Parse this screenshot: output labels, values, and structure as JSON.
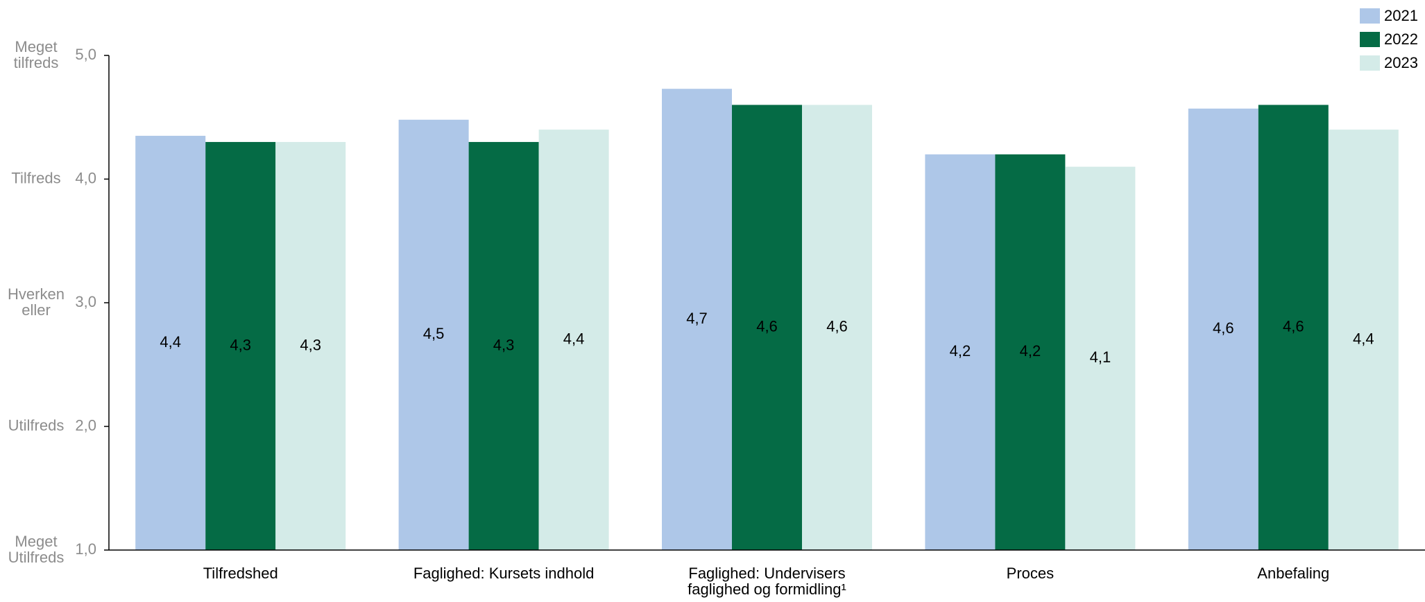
{
  "chart_data": {
    "type": "bar",
    "categories": [
      "Tilfredshed",
      "Faglighed: Kursets indhold",
      "Faglighed: Undervisers\nfaglighed og formidling¹",
      "Proces",
      "Anbefaling"
    ],
    "series": [
      {
        "name": "2021",
        "color": "#aec7e8",
        "label_color": "#000000",
        "values": [
          4.35,
          4.48,
          4.73,
          4.2,
          4.57
        ],
        "value_labels": [
          "4,4",
          "4,5",
          "4,7",
          "4,2",
          "4,6"
        ]
      },
      {
        "name": "2022",
        "color": "#056b45",
        "label_color": "#ffffff",
        "values": [
          4.3,
          4.3,
          4.6,
          4.2,
          4.6
        ],
        "value_labels": [
          "4,3",
          "4,3",
          "4,6",
          "4,2",
          "4,6"
        ]
      },
      {
        "name": "2023",
        "color": "#d4ebe8",
        "label_color": "#000000",
        "values": [
          4.3,
          4.4,
          4.6,
          4.1,
          4.4
        ],
        "value_labels": [
          "4,3",
          "4,4",
          "4,6",
          "4,1",
          "4,4"
        ]
      }
    ],
    "ylim": [
      1,
      5
    ],
    "yticks": [
      {
        "value": 1,
        "label": "1,0"
      },
      {
        "value": 2,
        "label": "2,0"
      },
      {
        "value": 3,
        "label": "3,0"
      },
      {
        "value": 4,
        "label": "4,0"
      },
      {
        "value": 5,
        "label": "5,0"
      }
    ],
    "ytick_descriptions": [
      "Meget\nUtilfreds",
      "Utilfreds",
      "Hverken\neller",
      "Tilfreds",
      "Meget\ntilfreds"
    ],
    "legend": "top-right"
  }
}
